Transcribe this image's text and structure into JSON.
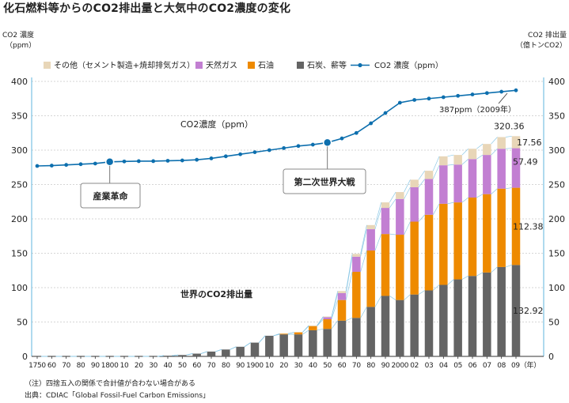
{
  "title": "化石燃料等からのCO2排出量と大気中のCO2濃度の変化",
  "notes": {
    "note": "（注）四捨五入の関係で合計値が合わない場合がある",
    "source": "出典：CDIAC「Global Fossil-Fuel Carbon Emissions」"
  },
  "chart_data": {
    "type": "bar",
    "stacked": true,
    "left_axis": {
      "label_line1": "CO2 濃度",
      "label_line2": "（ppm）",
      "ylim": [
        0,
        400
      ],
      "ticks": [
        0,
        50,
        100,
        150,
        200,
        250,
        300,
        350,
        400
      ]
    },
    "right_axis": {
      "label_line1": "CO2 排出量",
      "label_line2": "（億トンCO2）",
      "ylim": [
        0,
        400
      ],
      "ticks": [
        0,
        50,
        100,
        150,
        200,
        250,
        300,
        350,
        400
      ]
    },
    "x_labels": [
      "1750",
      "60",
      "70",
      "80",
      "90",
      "1800",
      "10",
      "20",
      "30",
      "40",
      "50",
      "60",
      "70",
      "80",
      "90",
      "1900",
      "10",
      "20",
      "30",
      "40",
      "50",
      "60",
      "70",
      "80",
      "90",
      "2000",
      "02",
      "03",
      "04",
      "05",
      "06",
      "07",
      "08",
      "09（年）"
    ],
    "categories": [
      "1750",
      "1760",
      "1770",
      "1780",
      "1790",
      "1800",
      "1810",
      "1820",
      "1830",
      "1840",
      "1850",
      "1860",
      "1870",
      "1880",
      "1890",
      "1900",
      "1910",
      "1920",
      "1930",
      "1940",
      "1950",
      "1960",
      "1970",
      "1980",
      "1990",
      "2000",
      "2002",
      "2003",
      "2004",
      "2005",
      "2006",
      "2007",
      "2008",
      "2009"
    ],
    "series": [
      {
        "name": "石炭、薪等",
        "color": "#646464",
        "values": [
          0,
          0,
          0,
          0,
          0,
          0,
          0,
          0,
          0,
          1,
          2,
          4,
          7,
          10,
          14,
          20,
          30,
          32,
          32,
          38,
          40,
          52,
          56,
          72,
          88,
          82,
          90,
          96,
          104,
          112,
          117,
          122,
          130,
          132.92
        ]
      },
      {
        "name": "石油",
        "color": "#ee8a00",
        "values": [
          0,
          0,
          0,
          0,
          0,
          0,
          0,
          0,
          0,
          0,
          0,
          0,
          0,
          0,
          0,
          0,
          0,
          1,
          3,
          6,
          14,
          30,
          67,
          82,
          90,
          95,
          106,
          110,
          118,
          112,
          114,
          114,
          114,
          112.38
        ]
      },
      {
        "name": "天然ガス",
        "color": "#c27fd2",
        "values": [
          0,
          0,
          0,
          0,
          0,
          0,
          0,
          0,
          0,
          0,
          0,
          0,
          0,
          0,
          0,
          0,
          0,
          0,
          0,
          0,
          3,
          10,
          22,
          31,
          38,
          52,
          50,
          52,
          56,
          55,
          56,
          57,
          58,
          57.49
        ]
      },
      {
        "name": "その他（セメント製造+焼却排気ガス）",
        "color": "#e8d6b8",
        "values": [
          0,
          0,
          0,
          0,
          0,
          0,
          0,
          0,
          0,
          0,
          0,
          0,
          0,
          0,
          0,
          0,
          0,
          0,
          0,
          1,
          1,
          3,
          4,
          6,
          8,
          10,
          11,
          12,
          13,
          14,
          15,
          16,
          17,
          17.56
        ]
      }
    ],
    "total_label": "320.36",
    "value_labels": [
      "132.92",
      "112.38",
      "57.49",
      "17.56"
    ],
    "concentration": {
      "name": "CO2 濃度（ppm）",
      "color": "#0d6fae",
      "values": [
        277,
        277.5,
        278.5,
        279.5,
        280.5,
        283,
        283.5,
        284,
        284,
        284.5,
        285,
        286,
        288,
        291,
        294,
        297,
        300,
        303,
        306,
        308,
        311,
        317,
        325,
        339,
        354,
        369,
        373,
        375,
        377,
        379,
        381,
        383,
        385,
        387
      ]
    },
    "legend_position": "top-left",
    "annotations": {
      "co2_concentration": "CO2濃度（ppm）",
      "emissions": "世界のCO2排出量",
      "point_2009": "387ppm（2009年）",
      "industrial_revolution": "産業革命",
      "ww2": "第二次世界大戦"
    },
    "grid": true
  }
}
